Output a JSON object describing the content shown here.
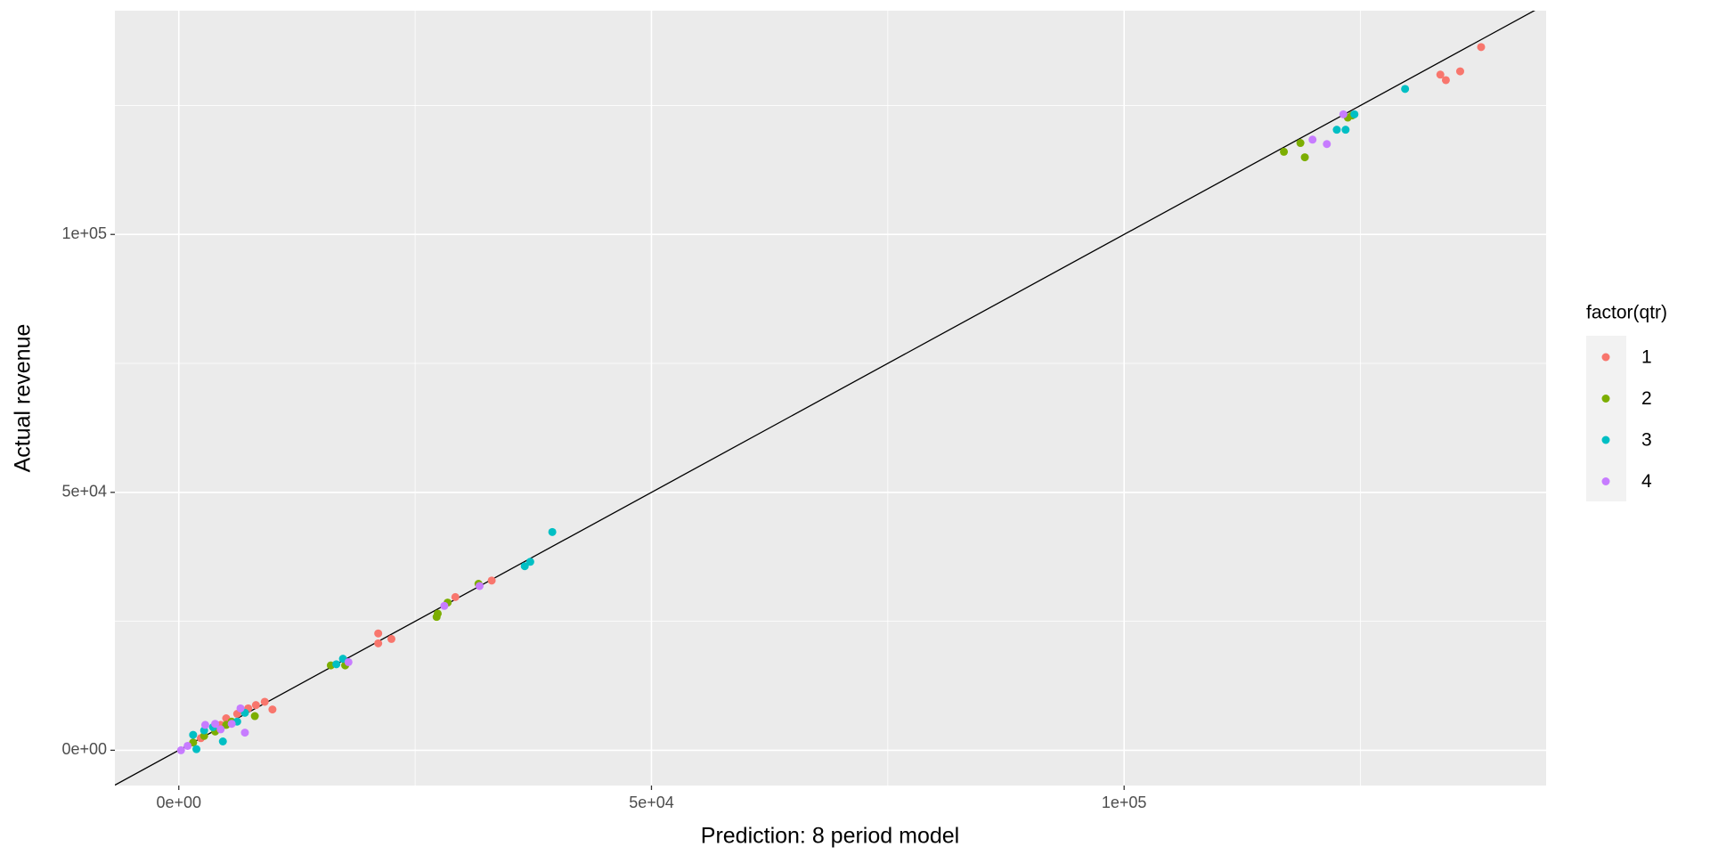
{
  "chart_data": {
    "type": "scatter",
    "x_label": "Prediction: 8 period model",
    "y_label": "Actual revenue",
    "legend_title": "factor(qtr)",
    "xlim": [
      -6760,
      144639
    ],
    "ylim": [
      -6838,
      143376
    ],
    "xticks": [
      {
        "value": 0,
        "label": "0e+00"
      },
      {
        "value": 50000,
        "label": "5e+04"
      },
      {
        "value": 100000,
        "label": "1e+05"
      }
    ],
    "yticks": [
      {
        "value": 0,
        "label": "0e+00"
      },
      {
        "value": 50000,
        "label": "5e+04"
      },
      {
        "value": 100000,
        "label": "1e+05"
      }
    ],
    "x_minor_grid": [
      25000,
      75000,
      125000
    ],
    "y_minor_grid": [
      25000,
      75000,
      125000
    ],
    "grid": true,
    "abline": {
      "intercept": 0,
      "slope": 1
    },
    "series": [
      {
        "name": "1",
        "color": "#F8766D",
        "x": [
          137762,
          135547,
          133450,
          134033,
          33100,
          29254,
          21096,
          22494,
          21096,
          9091,
          9907,
          8159,
          7343,
          6177,
          5012,
          2331,
          4429
        ],
        "values": [
          136325,
          131624,
          130983,
          129915,
          32906,
          29701,
          22650,
          21581,
          20726,
          9402,
          7906,
          8761,
          8120,
          7051,
          6197,
          2350,
          4915
        ]
      },
      {
        "name": "2",
        "color": "#7CAE00",
        "x": [
          116900,
          118648,
          119114,
          123660,
          124126,
          31702,
          28438,
          27389,
          27273,
          16084,
          17599,
          8042,
          5594,
          3846,
          2681,
          1515,
          5012
        ],
        "values": [
          116026,
          117735,
          114957,
          122650,
          123077,
          32265,
          28632,
          26496,
          25855,
          16453,
          16453,
          6624,
          5556,
          3632,
          2778,
          1496,
          4915
        ]
      },
      {
        "name": "3",
        "color": "#00BFC4",
        "x": [
          129720,
          122494,
          123427,
          124359,
          39510,
          37179,
          36597,
          17366,
          16667,
          4662,
          1515,
          2681,
          3613,
          6177,
          6993,
          1865
        ],
        "values": [
          128205,
          120299,
          120299,
          123291,
          42308,
          36538,
          35684,
          17735,
          16667,
          1709,
          2991,
          3846,
          4487,
          5556,
          7265,
          214
        ]
      },
      {
        "name": "4",
        "color": "#C77CFF",
        "x": [
          123193,
          119930,
          121445,
          31818,
          28089,
          17949,
          233,
          932,
          2797,
          3846,
          6993,
          5594,
          4429,
          6527
        ],
        "values": [
          123291,
          118376,
          117521,
          31838,
          27991,
          17094,
          0,
          855,
          4915,
          5128,
          3419,
          5128,
          4060,
          8120
        ]
      }
    ]
  }
}
